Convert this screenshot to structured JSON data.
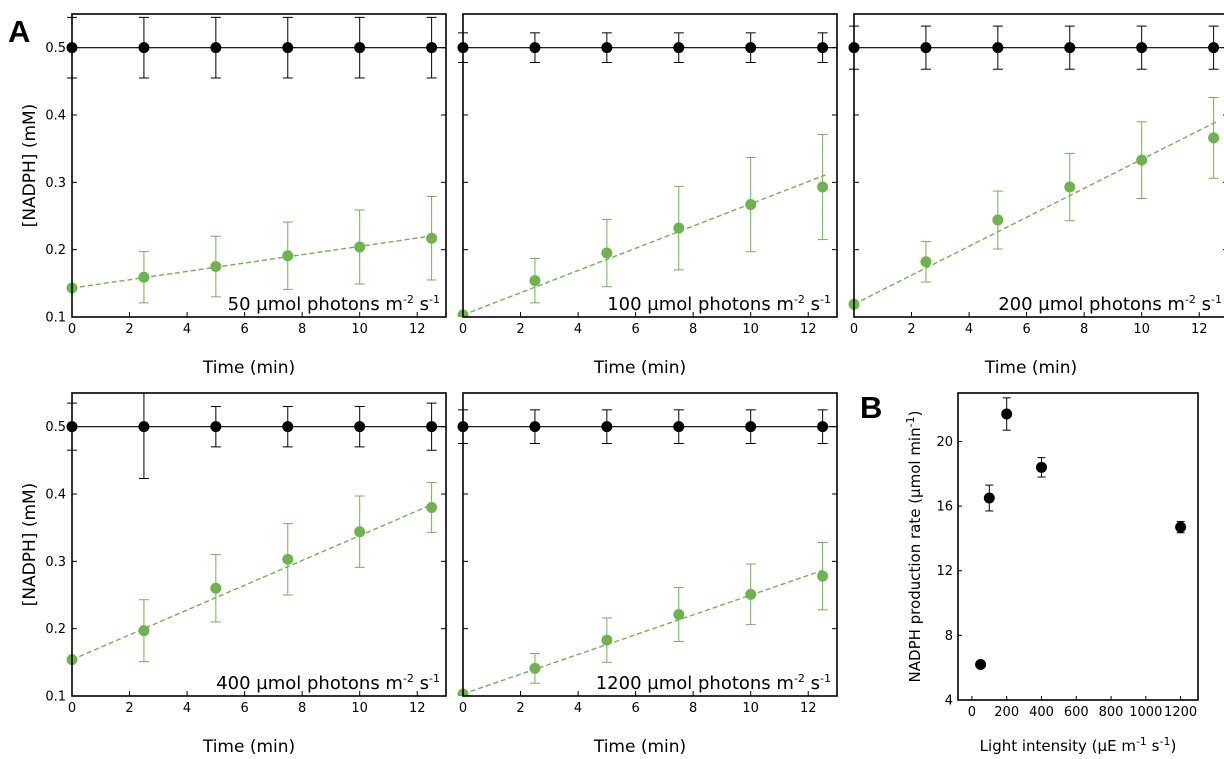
{
  "panel_labels": {
    "a": "A",
    "b": "B"
  },
  "colors": {
    "control": "#000000",
    "sample": "#6fb34f",
    "frame": "#000000"
  },
  "chart_data": [
    {
      "type": "scatter",
      "xlabel": "Time (min)",
      "ylabel": "[NADPH] (mM)",
      "xlim": [
        0,
        13
      ],
      "ylim": [
        0.1,
        0.55
      ],
      "xticks": [
        0,
        2,
        4,
        6,
        8,
        10,
        12
      ],
      "yticks": [
        0.1,
        0.2,
        0.3,
        0.4,
        0.5
      ],
      "annotation": {
        "main": "50 µmol photons m",
        "exp1": "-2",
        "mid": " s",
        "exp2": "-1"
      },
      "series": [
        {
          "x": [
            0,
            2.5,
            5,
            7.5,
            10,
            12.5
          ],
          "y": [
            0.5,
            0.5,
            0.5,
            0.5,
            0.5,
            0.5
          ],
          "err": [
            0.045,
            0.045,
            0.045,
            0.045,
            0.045,
            0.045
          ]
        },
        {
          "x": [
            0,
            2.5,
            5,
            7.5,
            10,
            12.5
          ],
          "y": [
            0.143,
            0.159,
            0.175,
            0.191,
            0.204,
            0.217
          ],
          "err": [
            0,
            0.038,
            0.045,
            0.05,
            0.055,
            0.062
          ],
          "fit": [
            0.143,
            0.221
          ]
        }
      ]
    },
    {
      "type": "scatter",
      "xlabel": "Time (min)",
      "ylabel": "",
      "xlim": [
        0,
        13
      ],
      "ylim": [
        0.1,
        0.55
      ],
      "xticks": [
        0,
        2,
        4,
        6,
        8,
        10,
        12
      ],
      "yticks": [
        0.1,
        0.2,
        0.3,
        0.4,
        0.5
      ],
      "annotation": {
        "main": "100 µmol photons m",
        "exp1": "-2",
        "mid": " s",
        "exp2": "-1"
      },
      "series": [
        {
          "x": [
            0,
            2.5,
            5,
            7.5,
            10,
            12.5
          ],
          "y": [
            0.5,
            0.5,
            0.5,
            0.5,
            0.5,
            0.5
          ],
          "err": [
            0.022,
            0.022,
            0.022,
            0.022,
            0.022,
            0.022
          ]
        },
        {
          "x": [
            0,
            2.5,
            5,
            7.5,
            10,
            12.5
          ],
          "y": [
            0.103,
            0.154,
            0.195,
            0.232,
            0.267,
            0.293
          ],
          "err": [
            0,
            0.033,
            0.05,
            0.062,
            0.07,
            0.078
          ],
          "fit": [
            0.103,
            0.311
          ]
        }
      ]
    },
    {
      "type": "scatter",
      "xlabel": "Time (min)",
      "ylabel": "",
      "xlim": [
        0,
        13
      ],
      "ylim": [
        0.1,
        0.55
      ],
      "xticks": [
        0,
        2,
        4,
        6,
        8,
        10,
        12
      ],
      "yticks": [
        0.1,
        0.2,
        0.3,
        0.4,
        0.5
      ],
      "annotation": {
        "main": "200 µmol photons m",
        "exp1": "-2",
        "mid": " s",
        "exp2": "-1"
      },
      "series": [
        {
          "x": [
            0,
            2.5,
            5,
            7.5,
            10,
            12.5
          ],
          "y": [
            0.5,
            0.5,
            0.5,
            0.5,
            0.5,
            0.5
          ],
          "err": [
            0.032,
            0.032,
            0.032,
            0.032,
            0.032,
            0.032
          ]
        },
        {
          "x": [
            0,
            2.5,
            5,
            7.5,
            10,
            12.5
          ],
          "y": [
            0.119,
            0.182,
            0.244,
            0.293,
            0.333,
            0.366
          ],
          "err": [
            0,
            0.03,
            0.043,
            0.05,
            0.057,
            0.06
          ],
          "fit": [
            0.119,
            0.39
          ]
        }
      ]
    },
    {
      "type": "scatter",
      "xlabel": "Time (min)",
      "ylabel": "[NADPH] (mM)",
      "xlim": [
        0,
        13
      ],
      "ylim": [
        0.1,
        0.55
      ],
      "xticks": [
        0,
        2,
        4,
        6,
        8,
        10,
        12
      ],
      "yticks": [
        0.1,
        0.2,
        0.3,
        0.4,
        0.5
      ],
      "annotation": {
        "main": "400 µmol photons m",
        "exp1": "-2",
        "mid": " s",
        "exp2": "-1"
      },
      "series": [
        {
          "x": [
            0,
            2.5,
            5,
            7.5,
            10,
            12.5
          ],
          "y": [
            0.5,
            0.5,
            0.5,
            0.5,
            0.5,
            0.5
          ],
          "err": [
            0.035,
            0.077,
            0.03,
            0.03,
            0.03,
            0.035
          ]
        },
        {
          "x": [
            0,
            2.5,
            5,
            7.5,
            10,
            12.5
          ],
          "y": [
            0.154,
            0.197,
            0.26,
            0.303,
            0.344,
            0.38
          ],
          "err": [
            0,
            0.046,
            0.05,
            0.053,
            0.053,
            0.037
          ],
          "fit": [
            0.154,
            0.386
          ]
        }
      ]
    },
    {
      "type": "scatter",
      "xlabel": "Time (min)",
      "ylabel": "",
      "xlim": [
        0,
        13
      ],
      "ylim": [
        0.1,
        0.55
      ],
      "xticks": [
        0,
        2,
        4,
        6,
        8,
        10,
        12
      ],
      "yticks": [
        0.1,
        0.2,
        0.3,
        0.4,
        0.5
      ],
      "annotation": {
        "main": "1200 µmol photons m",
        "exp1": "-2",
        "mid": " s",
        "exp2": "-1"
      },
      "series": [
        {
          "x": [
            0,
            2.5,
            5,
            7.5,
            10,
            12.5
          ],
          "y": [
            0.5,
            0.5,
            0.5,
            0.5,
            0.5,
            0.5
          ],
          "err": [
            0.025,
            0.025,
            0.025,
            0.025,
            0.025,
            0.025
          ]
        },
        {
          "x": [
            0,
            2.5,
            5,
            7.5,
            10,
            12.5
          ],
          "y": [
            0.103,
            0.141,
            0.183,
            0.221,
            0.251,
            0.278
          ],
          "err": [
            0,
            0.022,
            0.033,
            0.04,
            0.045,
            0.05
          ],
          "fit": [
            0.103,
            0.288
          ]
        }
      ]
    },
    {
      "type": "scatter",
      "xlabel": "Light intensity (µE m",
      "xlabel_exp1": "-1",
      "xlabel_mid": " s",
      "xlabel_exp2": "-1",
      "xlabel_end": ")",
      "ylabel": "NADPH production rate (µmol min",
      "ylabel_exp": "-1",
      "ylabel_end": ")",
      "xlim": [
        -80,
        1300
      ],
      "ylim": [
        4,
        23
      ],
      "xticks": [
        0,
        200,
        400,
        600,
        800,
        1000,
        1200
      ],
      "xtick_labels": [
        "0",
        "200",
        "400",
        "600",
        "800",
        "1000",
        "1200"
      ],
      "yticks": [
        4,
        8,
        12,
        16,
        20
      ],
      "series": [
        {
          "x": [
            50,
            100,
            200,
            400,
            1200
          ],
          "y": [
            6.2,
            16.5,
            21.7,
            18.4,
            14.7
          ],
          "err": [
            0,
            0.8,
            1.0,
            0.6,
            0.35
          ]
        }
      ]
    }
  ]
}
